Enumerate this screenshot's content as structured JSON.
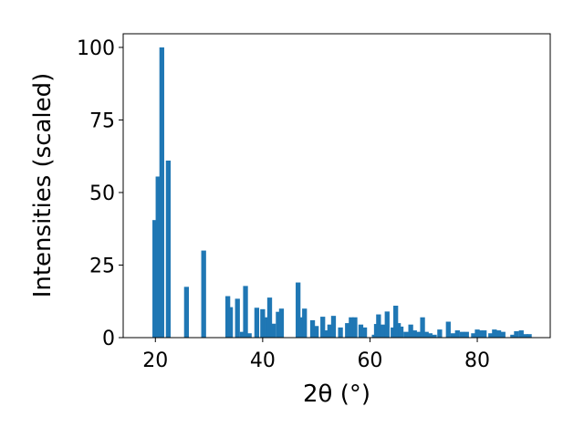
{
  "chart_data": {
    "type": "bar",
    "x_label": "2θ (°)",
    "y_label": "Intensities (scaled)",
    "color": "#1f77b4",
    "x": [
      19.9,
      20.5,
      21.2,
      22.4,
      25.8,
      29.0,
      33.5,
      34.0,
      35.3,
      36.2,
      36.8,
      37.5,
      38.9,
      40.0,
      40.9,
      41.3,
      42.0,
      42.9,
      43.5,
      46.6,
      47.2,
      47.8,
      49.3,
      50.0,
      51.2,
      51.8,
      52.5,
      53.2,
      54.5,
      55.8,
      56.5,
      57.2,
      58.3,
      59.0,
      60.8,
      61.2,
      61.6,
      62.4,
      63.2,
      64.3,
      64.8,
      65.3,
      65.8,
      66.7,
      67.6,
      68.3,
      69.0,
      69.8,
      70.5,
      71.2,
      72.0,
      73.0,
      74.6,
      75.5,
      76.3,
      77.2,
      78.0,
      79.3,
      80.0,
      80.6,
      81.3,
      82.5,
      83.2,
      84.0,
      84.8,
      86.6,
      87.3,
      88.2,
      89.0,
      89.7
    ],
    "values": [
      40.5,
      55.5,
      100,
      61,
      17.5,
      30,
      14.3,
      10.5,
      13.4,
      2,
      17.8,
      1.5,
      10.3,
      9.8,
      7,
      13.8,
      4.8,
      8.9,
      10,
      19,
      7,
      10,
      6,
      4,
      7.2,
      2.5,
      4.5,
      7.5,
      3.5,
      5,
      7,
      7,
      4.5,
      3.5,
      1,
      4.7,
      8,
      4.5,
      9,
      3.5,
      11,
      5,
      3.8,
      2,
      4.5,
      2.5,
      2,
      7,
      2,
      1.5,
      1,
      2.8,
      5.5,
      1.5,
      2.5,
      2,
      2,
      1.5,
      2.8,
      2.5,
      2.5,
      1.5,
      2.8,
      2.5,
      2,
      1,
      2.2,
      2.5,
      1.2,
      1.2
    ],
    "xlim": [
      14,
      93.6
    ],
    "ylim": [
      0,
      104.7
    ],
    "xticks": [
      20,
      40,
      60,
      80
    ],
    "yticks": [
      0,
      25,
      50,
      75,
      100
    ]
  }
}
